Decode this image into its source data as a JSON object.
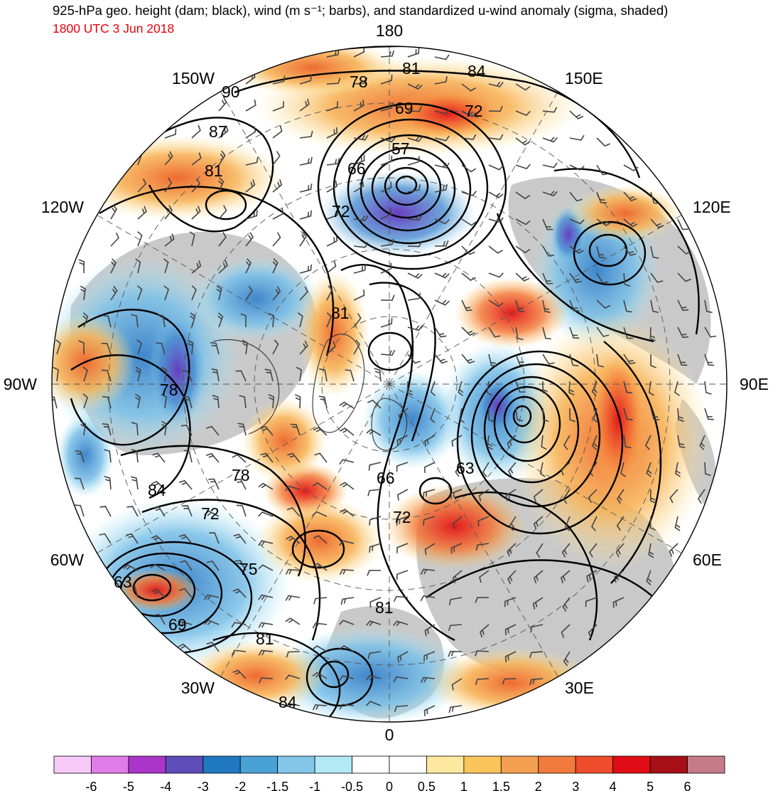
{
  "header": {
    "title_line": "925-hPa geo. height (dam; black), wind (m s⁻¹; barbs), and standardized u-wind anomaly (sigma, shaded)",
    "valid_time": "1800 UTC 3 Jun 2018"
  },
  "map": {
    "projection": "north-polar-stereographic",
    "longitude_labels": [
      {
        "id": "lon-180",
        "text": "180",
        "lon": 180
      },
      {
        "id": "lon-150e",
        "text": "150E",
        "lon": 150
      },
      {
        "id": "lon-120e",
        "text": "120E",
        "lon": 120
      },
      {
        "id": "lon-90e",
        "text": "90E",
        "lon": 90
      },
      {
        "id": "lon-60e",
        "text": "60E",
        "lon": 60
      },
      {
        "id": "lon-30e",
        "text": "30E",
        "lon": 30
      },
      {
        "id": "lon-0",
        "text": "0",
        "lon": 0
      },
      {
        "id": "lon-30w",
        "text": "30W",
        "lon": -30
      },
      {
        "id": "lon-60w",
        "text": "60W",
        "lon": -60
      },
      {
        "id": "lon-90w",
        "text": "90W",
        "lon": -90
      },
      {
        "id": "lon-120w",
        "text": "120W",
        "lon": -120
      },
      {
        "id": "lon-150w",
        "text": "150W",
        "lon": -150
      }
    ],
    "height_contour_labels": [
      "78",
      "81",
      "84",
      "90",
      "87",
      "81",
      "69",
      "72",
      "57",
      "66",
      "72",
      "81",
      "78",
      "84",
      "78",
      "72",
      "66",
      "63",
      "72",
      "63",
      "75",
      "69",
      "81",
      "81",
      "84"
    ],
    "colors": {
      "ocean_land_fill": "#c9c9c9",
      "contour": "#000000",
      "title_red": "#e8000b"
    }
  },
  "colorbar": {
    "colors": [
      "#f6c9f7",
      "#e07ce9",
      "#a935c9",
      "#5e4cb8",
      "#1f78c0",
      "#4aa1d6",
      "#85c6e8",
      "#b3e8f5",
      "#ffffff",
      "#ffffff",
      "#fde8a0",
      "#f9c55a",
      "#f5a050",
      "#f07b3c",
      "#ee4c2b",
      "#e10d16",
      "#a50f15",
      "#c67b88"
    ],
    "tick_labels": [
      "-6",
      "-5",
      "-4",
      "-3",
      "-2",
      "-1.5",
      "-1",
      "-0.5",
      "0",
      "0.5",
      "1",
      "1.5",
      "2",
      "3",
      "4",
      "5",
      "6"
    ]
  }
}
